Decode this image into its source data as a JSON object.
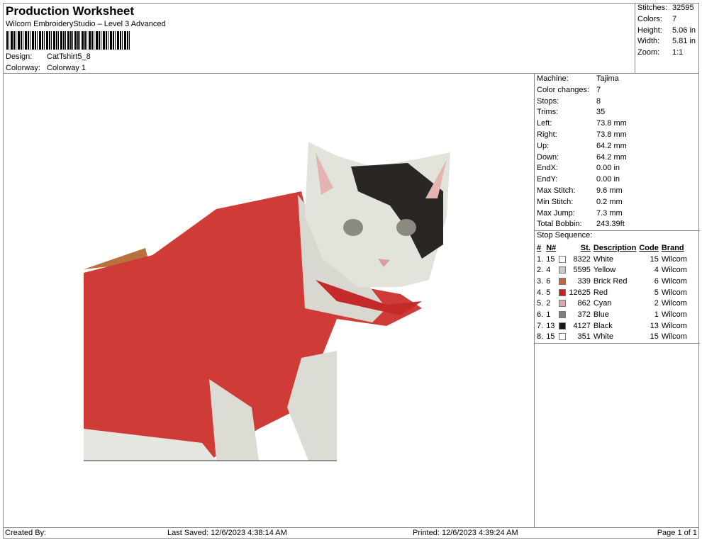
{
  "header": {
    "title": "Production Worksheet",
    "subtitle": "Wilcom EmbroideryStudio – Level 3 Advanced",
    "design_label": "Design:",
    "design_value": "CatTshirt5_8",
    "colorway_label": "Colorway:",
    "colorway_value": "Colorway 1"
  },
  "stats": [
    {
      "label": "Stitches:",
      "value": "32595"
    },
    {
      "label": "Colors:",
      "value": "7"
    },
    {
      "label": "Height:",
      "value": "5.06 in"
    },
    {
      "label": "Width:",
      "value": "5.81 in"
    },
    {
      "label": "Zoom:",
      "value": "1:1"
    }
  ],
  "info": [
    {
      "label": "Machine:",
      "value": "Tajima"
    },
    {
      "label": "Color changes:",
      "value": "7"
    },
    {
      "label": "Stops:",
      "value": "8"
    },
    {
      "label": "Trims:",
      "value": "35"
    },
    {
      "label": "Left:",
      "value": "73.8 mm"
    },
    {
      "label": "Right:",
      "value": "73.8 mm"
    },
    {
      "label": "Up:",
      "value": "64.2 mm"
    },
    {
      "label": "Down:",
      "value": "64.2 mm"
    },
    {
      "label": "EndX:",
      "value": "0.00 in"
    },
    {
      "label": "EndY:",
      "value": "0.00 in"
    },
    {
      "label": "Max Stitch:",
      "value": "9.6 mm"
    },
    {
      "label": "Min Stitch:",
      "value": "0.2 mm"
    },
    {
      "label": "Max Jump:",
      "value": "7.3 mm"
    },
    {
      "label": "Total Bobbin:",
      "value": "243.39ft"
    }
  ],
  "stop_sequence": {
    "title": "Stop Sequence:",
    "columns": [
      "#",
      "N#",
      "St.",
      "Description",
      "Code",
      "Brand"
    ],
    "rows": [
      {
        "idx": "1.",
        "n": "15",
        "color": "#ffffff",
        "st": "8322",
        "desc": "White",
        "code": "15",
        "brand": "Wilcom"
      },
      {
        "idx": "2.",
        "n": "4",
        "color": "#c8c8c8",
        "st": "5595",
        "desc": "Yellow",
        "code": "4",
        "brand": "Wilcom"
      },
      {
        "idx": "3.",
        "n": "6",
        "color": "#c0683c",
        "st": "339",
        "desc": "Brick Red",
        "code": "6",
        "brand": "Wilcom"
      },
      {
        "idx": "4.",
        "n": "5",
        "color": "#c81e1e",
        "st": "12625",
        "desc": "Red",
        "code": "5",
        "brand": "Wilcom"
      },
      {
        "idx": "5.",
        "n": "2",
        "color": "#d8a8b0",
        "st": "862",
        "desc": "Cyan",
        "code": "2",
        "brand": "Wilcom"
      },
      {
        "idx": "6.",
        "n": "1",
        "color": "#808080",
        "st": "372",
        "desc": "Blue",
        "code": "1",
        "brand": "Wilcom"
      },
      {
        "idx": "7.",
        "n": "13",
        "color": "#1a1a1a",
        "st": "4127",
        "desc": "Black",
        "code": "13",
        "brand": "Wilcom"
      },
      {
        "idx": "8.",
        "n": "15",
        "color": "#ffffff",
        "st": "351",
        "desc": "White",
        "code": "15",
        "brand": "Wilcom"
      }
    ]
  },
  "footer": {
    "created": "Created By:",
    "saved": "Last Saved: 12/6/2023 4:38:14 AM",
    "printed": "Printed: 12/6/2023 4:39:24 AM",
    "page": "Page 1 of 1"
  }
}
